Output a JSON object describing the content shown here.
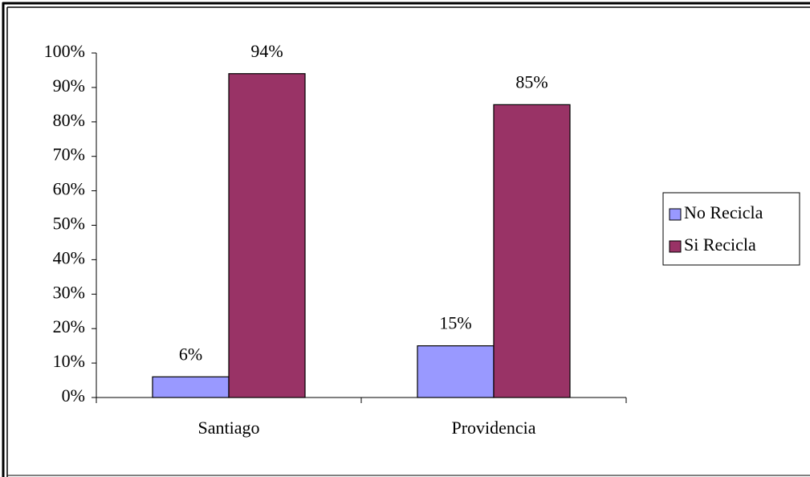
{
  "chart_data": {
    "type": "bar",
    "categories": [
      "Santiago",
      "Providencia"
    ],
    "series": [
      {
        "name": "No Recicla",
        "color": "#9999ff",
        "values": [
          6,
          15
        ],
        "value_labels": [
          "6%",
          "15%"
        ]
      },
      {
        "name": "Si Recicla",
        "color": "#993366",
        "values": [
          94,
          85
        ],
        "value_labels": [
          "94%",
          "85%"
        ]
      }
    ],
    "ylim": [
      0,
      100
    ],
    "yticks": [
      {
        "value": 0,
        "label": "0%"
      },
      {
        "value": 10,
        "label": "10%"
      },
      {
        "value": 20,
        "label": "20%"
      },
      {
        "value": 30,
        "label": "30%"
      },
      {
        "value": 40,
        "label": "40%"
      },
      {
        "value": 50,
        "label": "50%"
      },
      {
        "value": 60,
        "label": "60%"
      },
      {
        "value": 70,
        "label": "70%"
      },
      {
        "value": 80,
        "label": "80%"
      },
      {
        "value": 90,
        "label": "90%"
      },
      {
        "value": 100,
        "label": "100%"
      }
    ],
    "legend": "right"
  }
}
